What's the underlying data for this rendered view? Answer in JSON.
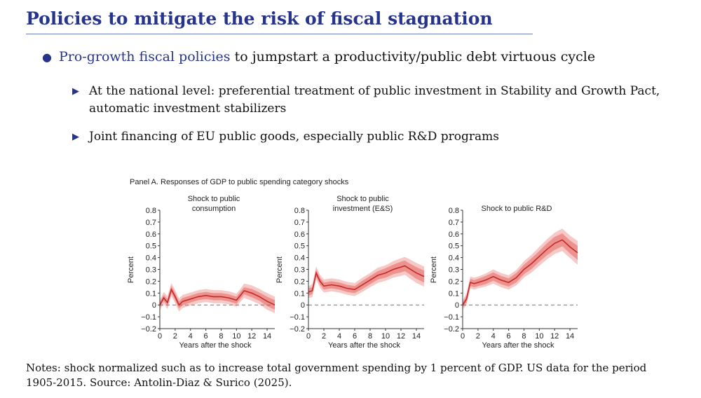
{
  "slide": {
    "title": "Policies to mitigate the risk of fiscal stagnation",
    "bullet": {
      "highlight": "Pro-growth fiscal policies",
      "rest": "to jumpstart a productivity/public debt virtuous cycle"
    },
    "sub_bullets": [
      "At the national level: preferential treatment of public investment in Stability and Growth Pact, automatic investment stabilizers",
      "Joint financing of EU public goods, especially public R&D programs"
    ],
    "notes": "Notes: shock normalized such as to increase total government spending by 1 percent of GDP. US data for the period 1905-2015. Source: Antolin-Diaz & Surico (2025)."
  },
  "panel_title": "Panel A. Responses of GDP to public spending category shocks",
  "colors": {
    "accent": "#27348b",
    "line": "#c62828",
    "band_outer": "#f6c9c7",
    "band_inner": "#ec9390"
  },
  "chart_data": [
    {
      "type": "line",
      "title_lines": [
        "Shock to public",
        "consumption"
      ],
      "xlabel": "Years after the shock",
      "ylabel": "Percent",
      "xlim": [
        0,
        15
      ],
      "ylim": [
        -0.2,
        0.8
      ],
      "xticks": [
        "0",
        "2",
        "4",
        "6",
        "8",
        "10",
        "12",
        "14"
      ],
      "yticks": [
        "0.8",
        "0.7",
        "0.6",
        "0.5",
        "0.4",
        "0.3",
        "0.2",
        "0.1",
        "0",
        "−0.1",
        "−0.2"
      ],
      "x": [
        0,
        0.5,
        1,
        1.5,
        2,
        2.5,
        3,
        4,
        5,
        6,
        7,
        8,
        9,
        10,
        10.5,
        11,
        12,
        13,
        14,
        15
      ],
      "median": [
        0,
        0.06,
        0.02,
        0.13,
        0.07,
        0.0,
        0.03,
        0.05,
        0.07,
        0.08,
        0.07,
        0.07,
        0.06,
        0.04,
        0.08,
        0.12,
        0.1,
        0.07,
        0.03,
        0.0
      ],
      "band68": [
        0.025,
        0.025,
        0.03,
        0.03,
        0.03,
        0.03,
        0.03,
        0.03,
        0.03,
        0.03,
        0.03,
        0.03,
        0.03,
        0.03,
        0.03,
        0.03,
        0.035,
        0.035,
        0.04,
        0.04
      ],
      "band90": [
        0.045,
        0.05,
        0.055,
        0.055,
        0.055,
        0.055,
        0.055,
        0.055,
        0.055,
        0.055,
        0.055,
        0.055,
        0.055,
        0.055,
        0.055,
        0.06,
        0.065,
        0.065,
        0.07,
        0.07
      ]
    },
    {
      "type": "line",
      "title_lines": [
        "Shock to public",
        "investment (E&S)"
      ],
      "xlabel": "Years after the shock",
      "ylabel": "Percent",
      "xlim": [
        0,
        15
      ],
      "ylim": [
        -0.2,
        0.8
      ],
      "xticks": [
        "0",
        "2",
        "4",
        "6",
        "8",
        "10",
        "12",
        "14"
      ],
      "yticks": [
        "0.8",
        "0.7",
        "0.6",
        "0.5",
        "0.4",
        "0.3",
        "0.2",
        "0.1",
        "0",
        "−0.1",
        "−0.2"
      ],
      "x": [
        0,
        0.5,
        1,
        1.5,
        2,
        3,
        4,
        5,
        6,
        7,
        8,
        9,
        10,
        11,
        12,
        12.5,
        13,
        14,
        15
      ],
      "median": [
        0.11,
        0.12,
        0.27,
        0.2,
        0.16,
        0.17,
        0.16,
        0.14,
        0.13,
        0.17,
        0.21,
        0.25,
        0.27,
        0.3,
        0.32,
        0.33,
        0.31,
        0.27,
        0.24
      ],
      "band68": [
        0.03,
        0.03,
        0.03,
        0.03,
        0.03,
        0.03,
        0.03,
        0.03,
        0.03,
        0.035,
        0.035,
        0.035,
        0.04,
        0.04,
        0.045,
        0.045,
        0.045,
        0.05,
        0.05
      ],
      "band90": [
        0.05,
        0.055,
        0.055,
        0.055,
        0.055,
        0.055,
        0.055,
        0.055,
        0.055,
        0.06,
        0.06,
        0.065,
        0.065,
        0.07,
        0.075,
        0.075,
        0.08,
        0.085,
        0.085
      ]
    },
    {
      "type": "line",
      "title_lines": [
        "Shock to public R&D"
      ],
      "xlabel": "Years after the shock",
      "ylabel": "Percent",
      "xlim": [
        0,
        15
      ],
      "ylim": [
        -0.2,
        0.8
      ],
      "xticks": [
        "0",
        "2",
        "4",
        "6",
        "8",
        "10",
        "12",
        "14"
      ],
      "yticks": [
        "0.8",
        "0.7",
        "0.6",
        "0.5",
        "0.4",
        "0.3",
        "0.2",
        "0.1",
        "0",
        "−0.1",
        "−0.2"
      ],
      "x": [
        0,
        0.5,
        1,
        1.5,
        2,
        3,
        4,
        5,
        6,
        7,
        8,
        9,
        10,
        11,
        12,
        13,
        14,
        15
      ],
      "median": [
        0.0,
        0.05,
        0.19,
        0.18,
        0.19,
        0.21,
        0.24,
        0.21,
        0.19,
        0.23,
        0.3,
        0.35,
        0.41,
        0.47,
        0.52,
        0.55,
        0.49,
        0.44
      ],
      "band68": [
        0.02,
        0.03,
        0.03,
        0.03,
        0.03,
        0.035,
        0.035,
        0.035,
        0.035,
        0.04,
        0.04,
        0.045,
        0.045,
        0.05,
        0.055,
        0.055,
        0.055,
        0.06
      ],
      "band90": [
        0.04,
        0.05,
        0.05,
        0.05,
        0.05,
        0.055,
        0.06,
        0.06,
        0.06,
        0.065,
        0.07,
        0.075,
        0.08,
        0.085,
        0.09,
        0.095,
        0.095,
        0.1
      ]
    }
  ]
}
